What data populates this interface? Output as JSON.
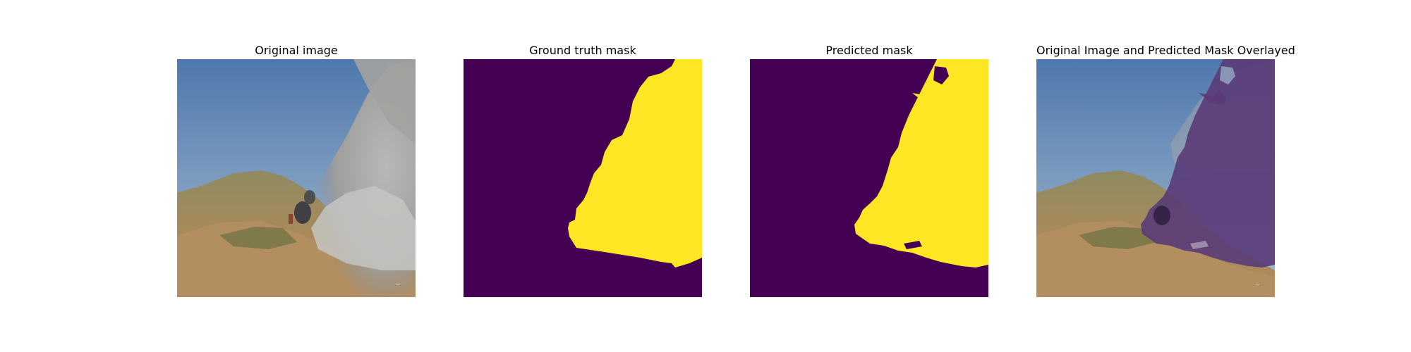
{
  "figure": {
    "panels": [
      {
        "title": "Original image"
      },
      {
        "title": "Ground truth mask"
      },
      {
        "title": "Predicted mask"
      },
      {
        "title": "Original Image and Predicted Mask Overlayed"
      }
    ]
  },
  "colors": {
    "mask_background": "#440154",
    "mask_foreground": "#fde725",
    "sky_top": "#5a82b4",
    "sky_bottom": "#9db4cc",
    "smoke": "#a7a7a7",
    "hill": "#9c8a5e",
    "overlay_tint": "#5a3b78"
  }
}
